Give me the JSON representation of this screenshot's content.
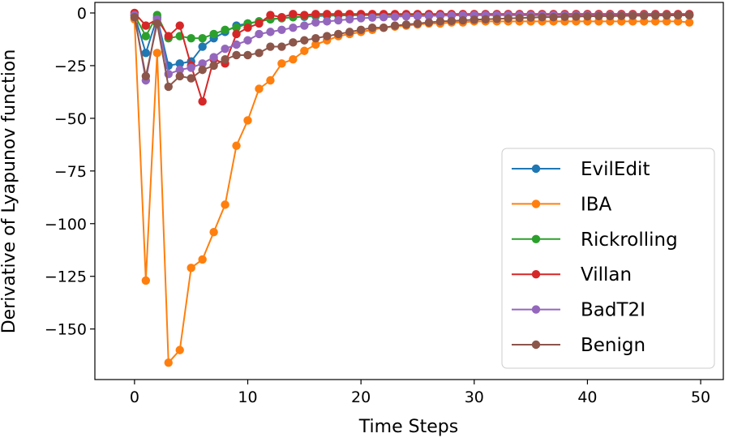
{
  "chart_data": {
    "type": "line",
    "title": "",
    "xlabel": "Time Steps",
    "ylabel": "Derivative of Lyapunov function",
    "xlim": [
      -3.5,
      52
    ],
    "ylim": [
      -174,
      5
    ],
    "xticks": [
      0,
      10,
      20,
      30,
      40,
      50
    ],
    "yticks": [
      0,
      -25,
      -50,
      -75,
      -100,
      -125,
      -150
    ],
    "xtick_labels": [
      "0",
      "10",
      "20",
      "30",
      "40",
      "50"
    ],
    "ytick_labels": [
      "0",
      "−25",
      "−50",
      "−75",
      "−100",
      "−125",
      "−150"
    ],
    "legend_position": "center-right",
    "series": [
      {
        "name": "EvilEdit",
        "color": "#1f77b4",
        "values": [
          -1,
          -19,
          -2,
          -25,
          -24,
          -23,
          -16,
          -12,
          -9,
          -6,
          -5,
          -4,
          -3,
          -2.5,
          -2,
          -1.8,
          -1.5,
          -1.3,
          -1.2,
          -1.1,
          -1,
          -1,
          -1,
          -1,
          -1,
          -1,
          -1,
          -1,
          -1,
          -1,
          -1,
          -1,
          -1,
          -1,
          -1,
          -1,
          -1,
          -1,
          -1,
          -1,
          -1,
          -1,
          -1,
          -1,
          -1,
          -1,
          -1,
          -1,
          -1,
          -1
        ]
      },
      {
        "name": "IBA",
        "color": "#ff7f0e",
        "values": [
          -3,
          -127,
          -19,
          -166,
          -160,
          -121,
          -117,
          -104,
          -91,
          -63,
          -51,
          -36,
          -32,
          -24,
          -22,
          -18,
          -15,
          -13,
          -11,
          -10,
          -9,
          -8,
          -7,
          -6.5,
          -6,
          -5.5,
          -5,
          -5,
          -4.5,
          -4.5,
          -4,
          -4,
          -4,
          -4,
          -4,
          -4,
          -4,
          -4,
          -4,
          -4,
          -4,
          -4,
          -4,
          -4,
          -4,
          -4,
          -4,
          -4,
          -4,
          -4.5
        ]
      },
      {
        "name": "Rickrolling",
        "color": "#2ca02c",
        "values": [
          -1,
          -11,
          -1,
          -12,
          -11,
          -12,
          -12,
          -10,
          -8,
          -7,
          -5,
          -4,
          -3,
          -2.5,
          -2,
          -1.5,
          -1.2,
          -1,
          -1,
          -1,
          -1,
          -1,
          -1,
          -1,
          -1,
          -1,
          -1,
          -1,
          -1,
          -1,
          -1,
          -1,
          -1,
          -1,
          -1,
          -1,
          -1,
          -1,
          -1,
          -1,
          -1,
          -1,
          -1,
          -1,
          -1,
          -1,
          -1,
          -1,
          -1,
          -1
        ]
      },
      {
        "name": "Villan",
        "color": "#d62728",
        "values": [
          0,
          -6,
          -3,
          -11,
          -6,
          -25,
          -42,
          -22,
          -24,
          -10,
          -7,
          -5,
          -1,
          -2,
          -0.5,
          -1,
          -0.5,
          -0.5,
          -0.5,
          -0.5,
          -0.5,
          -0.5,
          -0.5,
          -0.5,
          -0.5,
          -0.5,
          -0.5,
          -0.5,
          -0.5,
          -0.5,
          -0.5,
          -0.5,
          -0.5,
          -0.5,
          -0.5,
          -0.5,
          -0.5,
          -0.5,
          -0.5,
          -0.5,
          -0.5,
          -0.5,
          -0.5,
          -0.5,
          -0.5,
          -0.5,
          -0.5,
          -0.5,
          -0.5,
          -0.5
        ]
      },
      {
        "name": "BadT2I",
        "color": "#9467bd",
        "values": [
          -1,
          -32,
          -3,
          -29,
          -27,
          -26,
          -24,
          -21,
          -17,
          -15,
          -13,
          -10,
          -9,
          -8,
          -7,
          -6,
          -4.5,
          -4,
          -3.5,
          -3,
          -2.5,
          -2.2,
          -2,
          -1.8,
          -1.6,
          -1.5,
          -1.4,
          -1.3,
          -1.2,
          -1.1,
          -1,
          -1,
          -1,
          -1,
          -1,
          -1,
          -1,
          -1,
          -1,
          -1,
          -1,
          -1,
          -1,
          -1,
          -1,
          -1,
          -1,
          -1,
          -1,
          -1
        ]
      },
      {
        "name": "Benign",
        "color": "#8c564b",
        "values": [
          -2,
          -30,
          -5,
          -35,
          -30,
          -31,
          -27,
          -25,
          -22,
          -20,
          -20,
          -19,
          -16,
          -16,
          -14,
          -13,
          -12,
          -11,
          -10,
          -9,
          -8,
          -7,
          -7,
          -6,
          -5.5,
          -5,
          -4.5,
          -4,
          -3.8,
          -3.5,
          -3.2,
          -3,
          -2.8,
          -2.6,
          -2.4,
          -2.2,
          -2,
          -2,
          -1.8,
          -1.7,
          -1.6,
          -1.5,
          -1.5,
          -1.4,
          -1.3,
          -1.3,
          -1.2,
          -1.2,
          -1.1,
          -1.1
        ]
      }
    ]
  }
}
